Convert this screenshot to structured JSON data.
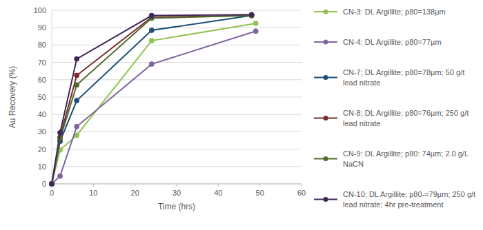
{
  "chart_data": {
    "type": "line",
    "x_label": "Time (hrs)",
    "y_label": "Au Recovery (%)",
    "xlim": [
      0,
      60
    ],
    "xticks": [
      0,
      10,
      20,
      30,
      40,
      50,
      60
    ],
    "ylim": [
      0,
      100
    ],
    "yticks": [
      0,
      10,
      20,
      30,
      40,
      50,
      60,
      70,
      80,
      90,
      100
    ],
    "grid": true,
    "legend": "right",
    "marker": "circle",
    "line_style": "solid",
    "series": [
      {
        "name": "CN-3: DL Argillite; p80=138µm",
        "color": "#92c353",
        "x": [
          0,
          2,
          6,
          24,
          49
        ],
        "values": [
          0,
          19.5,
          28,
          82.5,
          92.5
        ]
      },
      {
        "name": "CN-4: DL Argillite; p80=77µm",
        "color": "#8064a2",
        "x": [
          0,
          2,
          6,
          24,
          49
        ],
        "values": [
          0,
          4.5,
          33,
          69,
          88
        ]
      },
      {
        "name": "CN-7; DL Argillite; p80=78µm; 50 g/t lead nitrate",
        "color": "#1f4e79",
        "x": [
          0,
          2,
          6,
          24,
          48
        ],
        "values": [
          0,
          24.5,
          48,
          88.5,
          97
        ]
      },
      {
        "name": "CN-8; DL Argillite; p80=76µm; 250 g/t lead nitrate",
        "color": "#7b2a2a",
        "x": [
          0,
          2,
          6,
          24,
          48
        ],
        "values": [
          0,
          27,
          62.5,
          96,
          97
        ]
      },
      {
        "name": "CN-9: DL Argillite; p80: 74µm; 2.0 g/L NaCN",
        "color": "#4f6b2a",
        "x": [
          0,
          2,
          6,
          24,
          48
        ],
        "values": [
          0,
          26,
          57,
          95.5,
          97
        ]
      },
      {
        "name": "CN-10; DL Argillite; p80-=79µm; 250 g/t lead nitrate; 4hr pre-treatment",
        "color": "#3f2856",
        "x": [
          0,
          2,
          6,
          24,
          48
        ],
        "values": [
          0,
          29.5,
          72,
          97,
          97.5
        ]
      }
    ]
  }
}
